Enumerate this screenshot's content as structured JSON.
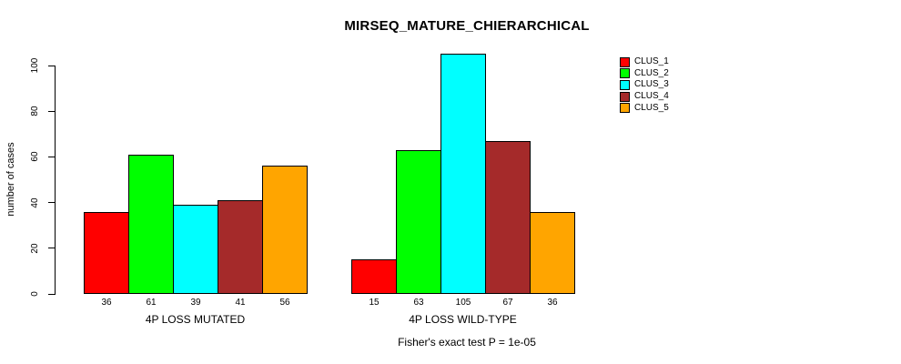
{
  "chart_data": {
    "type": "bar",
    "title": "MIRSEQ_MATURE_CHIERARCHICAL",
    "subtitle": "Fisher's exact test P = 1e-05",
    "xlabel": "",
    "ylabel": "number of cases",
    "ylim": [
      0,
      100
    ],
    "yticks": [
      0,
      20,
      40,
      60,
      80,
      100
    ],
    "grid": false,
    "legend_position": "right",
    "bar_value_labels_shown": true,
    "categories": [
      "4P LOSS MUTATED",
      "4P LOSS WILD-TYPE"
    ],
    "series": [
      {
        "name": "CLUS_1",
        "color": "#FF0000",
        "values": [
          36,
          15
        ]
      },
      {
        "name": "CLUS_2",
        "color": "#00FF00",
        "values": [
          61,
          63
        ]
      },
      {
        "name": "CLUS_3",
        "color": "#00FFFF",
        "values": [
          39,
          105
        ]
      },
      {
        "name": "CLUS_4",
        "color": "#A52A2A",
        "values": [
          41,
          67
        ]
      },
      {
        "name": "CLUS_5",
        "color": "#FFA500",
        "values": [
          56,
          36
        ]
      }
    ]
  },
  "colors": {
    "background": "#FFFFFF",
    "axis": "#000000",
    "text": "#000000"
  }
}
